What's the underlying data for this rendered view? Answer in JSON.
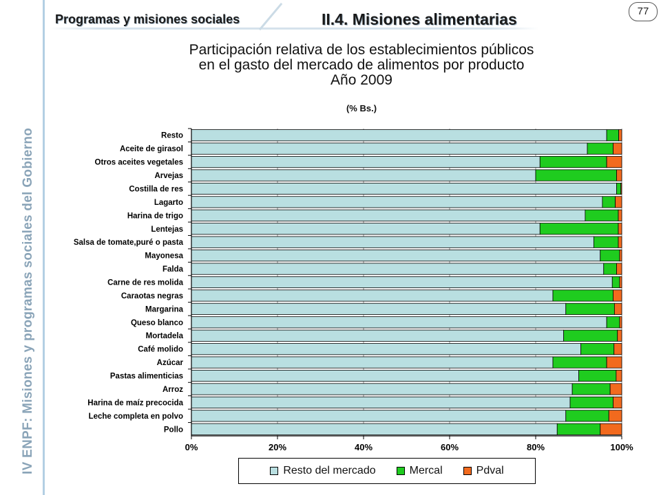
{
  "header": {
    "section": "Programas y misiones sociales",
    "subsection": "II.4. Misiones alimentarias",
    "page_number": "77"
  },
  "sidebar": {
    "prefix": "IV ENPF:",
    "text": "Misiones y programas sociales del Gobierno"
  },
  "colors": {
    "resto": "#b9dfe1",
    "mercal": "#1fcc1f",
    "pdval": "#f26a1e"
  },
  "chart_data": {
    "type": "bar",
    "orientation": "horizontal",
    "stacked": true,
    "title_lines": [
      "Participación relativa de los establecimientos públicos",
      "en el gasto del mercado de alimentos por producto",
      "Año 2009"
    ],
    "unit": "(% Bs.)",
    "categories": [
      "Resto",
      "Aceite de girasol",
      "Otros aceites vegetales",
      "Arvejas",
      "Costilla de res",
      "Lagarto",
      "Harina de trigo",
      "Lentejas",
      "Salsa de tomate,puré o pasta",
      "Mayonesa",
      "Falda",
      "Carne de res molida",
      "Caraotas negras",
      "Margarina",
      "Queso blanco",
      "Mortadela",
      "Café molido",
      "Azúcar",
      "Pastas alimenticias",
      "Arroz",
      "Harina de maíz precocida",
      "Leche completa en polvo",
      "Pollo"
    ],
    "series": [
      {
        "name": "Resto del mercado",
        "values": [
          96.5,
          92,
          81,
          80,
          98.8,
          95.5,
          91.5,
          81,
          93.5,
          95,
          95.8,
          97.8,
          84,
          87,
          96.5,
          86.5,
          90.5,
          84,
          90,
          88.5,
          88,
          87,
          85
        ]
      },
      {
        "name": "Mercal",
        "values": [
          2.8,
          6,
          15.5,
          18.8,
          1,
          3,
          7.7,
          18.2,
          5.7,
          4.5,
          3,
          1.7,
          14,
          11.3,
          3,
          12.5,
          7.7,
          12.5,
          8.7,
          8.8,
          10,
          10,
          10
        ]
      },
      {
        "name": "Pdval",
        "values": [
          0.7,
          2,
          3.5,
          1.2,
          0.2,
          1.5,
          0.8,
          0.8,
          0.8,
          0.5,
          1.2,
          0.5,
          2,
          1.7,
          0.5,
          1,
          1.8,
          3.5,
          1.3,
          2.7,
          2,
          3,
          5
        ]
      }
    ],
    "x_ticks": [
      "0%",
      "20%",
      "40%",
      "60%",
      "80%",
      "100%"
    ],
    "xlim": [
      0,
      100
    ],
    "grid": "vertical"
  }
}
